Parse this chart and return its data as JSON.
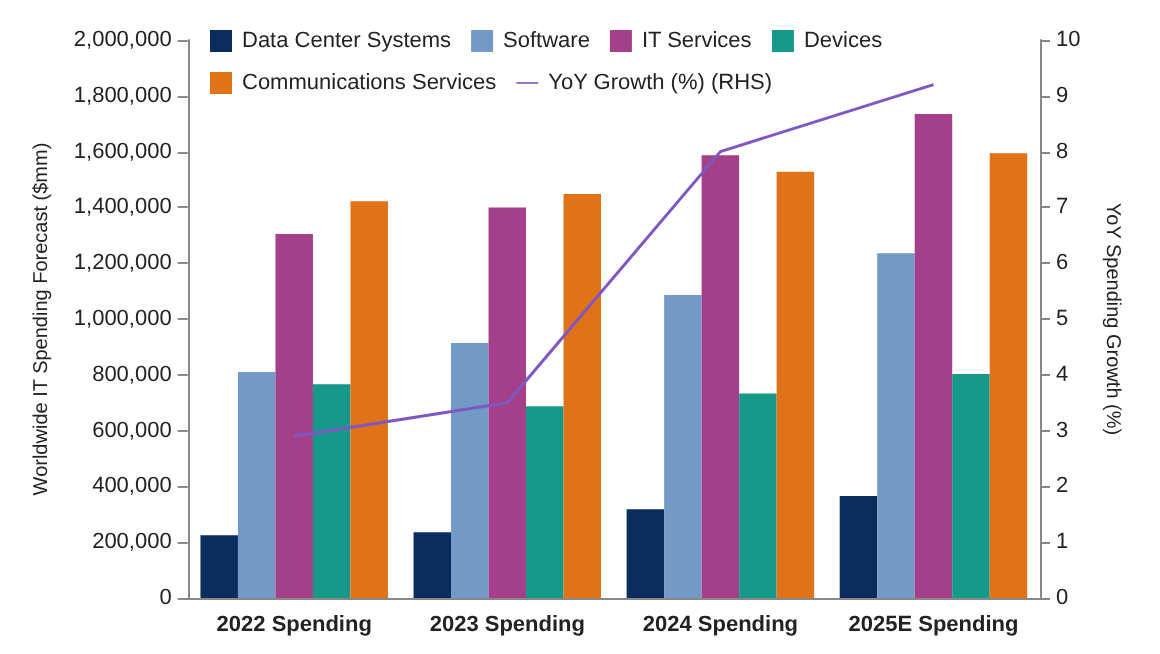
{
  "chart_data": {
    "type": "bar",
    "categories": [
      "2022 Spending",
      "2023 Spending",
      "2024 Spending",
      "2025E Spending"
    ],
    "ylabel": "Worldwide IT Spending Forecast ($mm)",
    "y2label": "YoY Spending Growth (%)",
    "ylim": [
      0,
      2000000
    ],
    "yticks": [
      0,
      {
        "value": 200000,
        "label": "200,000"
      },
      {
        "value": 400000,
        "label": "400,000"
      },
      {
        "value": 600000,
        "label": "600,000"
      },
      {
        "value": 800000,
        "label": "800,000"
      },
      {
        "value": 1000000,
        "label": "1,000,000"
      },
      {
        "value": 1200000,
        "label": "1,200,000"
      },
      {
        "value": 1400000,
        "label": "1,400,000"
      },
      {
        "value": 1600000,
        "label": "1,600,000"
      },
      {
        "value": 1800000,
        "label": "1,800,000"
      },
      {
        "value": 2000000,
        "label": "2,000,000"
      }
    ],
    "y2lim": [
      0,
      10
    ],
    "y2ticks": [
      0,
      1,
      2,
      3,
      4,
      5,
      6,
      7,
      8,
      9,
      10
    ],
    "grid": false,
    "legend": "top",
    "series": [
      {
        "name": "Data Center Systems",
        "color": "#0b2d5e",
        "values": [
          225000,
          236000,
          318000,
          366000
        ]
      },
      {
        "name": "Software",
        "color": "#7399c6",
        "values": [
          810000,
          914000,
          1086000,
          1236000
        ]
      },
      {
        "name": "IT Services",
        "color": "#a43f8a",
        "values": [
          1305000,
          1400000,
          1587000,
          1735000
        ]
      },
      {
        "name": "Devices",
        "color": "#16998a",
        "values": [
          766000,
          687000,
          733000,
          803000
        ]
      },
      {
        "name": "Communications Services",
        "color": "#e07318",
        "values": [
          1422000,
          1448000,
          1528000,
          1594000
        ]
      },
      {
        "name": "YoY Growth (%) (RHS)",
        "type": "line",
        "axis": "y2",
        "color": "#7e57c2",
        "marker": "none",
        "values": [
          2.9,
          3.5,
          8.0,
          9.2
        ]
      }
    ]
  }
}
